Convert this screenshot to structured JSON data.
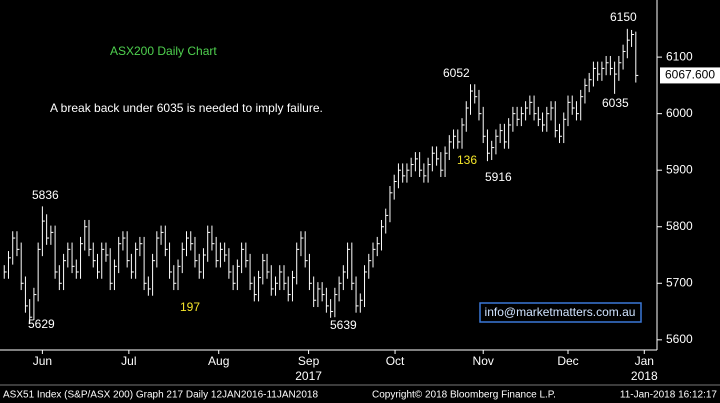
{
  "chart_data": {
    "type": "ohlc",
    "color": "#ffffff",
    "high": [
      5732,
      5757,
      5792,
      5792,
      5772,
      5712,
      5672,
      5692,
      5772,
      5836,
      5822,
      5802,
      5802,
      5732,
      5752,
      5772,
      5772,
      5742,
      5782,
      5812,
      5812,
      5772,
      5752,
      5772,
      5772,
      5762,
      5742,
      5782,
      5792,
      5792,
      5752,
      5772,
      5782,
      5782,
      5712,
      5752,
      5792,
      5802,
      5802,
      5772,
      5732,
      5742,
      5772,
      5792,
      5792,
      5782,
      5752,
      5762,
      5802,
      5802,
      5782,
      5772,
      5772,
      5762,
      5732,
      5742,
      5772,
      5772,
      5752,
      5712,
      5722,
      5752,
      5752,
      5732,
      5712,
      5732,
      5732,
      5712,
      5722,
      5772,
      5792,
      5792,
      5752,
      5712,
      5702,
      5702,
      5692,
      5672,
      5692,
      5712,
      5732,
      5772,
      5772,
      5712,
      5682,
      5732,
      5752,
      5772,
      5782,
      5812,
      5832,
      5872,
      5892,
      5912,
      5912,
      5912,
      5922,
      5932,
      5932,
      5912,
      5922,
      5942,
      5942,
      5932,
      5942,
      5962,
      5972,
      5972,
      5992,
      6022,
      6052,
      6052,
      6042,
      6012,
      5972,
      5952,
      5972,
      5982,
      5982,
      5992,
      6012,
      6012,
      6012,
      6022,
      6032,
      6032,
      6012,
      6002,
      6012,
      6022,
      6022,
      5982,
      6002,
      6032,
      6032,
      6022,
      6042,
      6062,
      6072,
      6092,
      6092,
      6092,
      6102,
      6102,
      6092,
      6102,
      6122,
      6150,
      6148,
      6145
    ],
    "low": [
      5708,
      5708,
      5733,
      5748,
      5688,
      5648,
      5629,
      5635,
      5668,
      5748,
      5768,
      5768,
      5708,
      5688,
      5688,
      5728,
      5718,
      5708,
      5708,
      5758,
      5748,
      5728,
      5708,
      5708,
      5738,
      5688,
      5688,
      5718,
      5758,
      5728,
      5708,
      5708,
      5748,
      5688,
      5678,
      5678,
      5728,
      5768,
      5748,
      5708,
      5688,
      5688,
      5718,
      5748,
      5758,
      5728,
      5708,
      5708,
      5738,
      5758,
      5728,
      5728,
      5738,
      5708,
      5688,
      5688,
      5718,
      5728,
      5688,
      5668,
      5668,
      5698,
      5708,
      5678,
      5678,
      5688,
      5688,
      5668,
      5668,
      5698,
      5748,
      5728,
      5688,
      5658,
      5658,
      5668,
      5648,
      5639,
      5640,
      5668,
      5688,
      5708,
      5688,
      5648,
      5648,
      5658,
      5708,
      5728,
      5748,
      5758,
      5788,
      5808,
      5848,
      5868,
      5878,
      5878,
      5888,
      5898,
      5888,
      5878,
      5878,
      5898,
      5908,
      5888,
      5888,
      5918,
      5938,
      5938,
      5938,
      5968,
      5998,
      6018,
      5988,
      5948,
      5916,
      5918,
      5928,
      5948,
      5938,
      5938,
      5968,
      5978,
      5978,
      5988,
      5998,
      5988,
      5978,
      5968,
      5968,
      5988,
      5958,
      5948,
      5948,
      5978,
      5998,
      5988,
      5988,
      6018,
      6038,
      6048,
      6058,
      6058,
      6068,
      6068,
      6035,
      6058,
      6078,
      6098,
      6118,
      6055
    ],
    "close": [
      5720,
      5745,
      5780,
      5760,
      5700,
      5660,
      5640,
      5680,
      5760,
      5810,
      5780,
      5790,
      5720,
      5700,
      5740,
      5760,
      5730,
      5720,
      5770,
      5800,
      5760,
      5740,
      5720,
      5760,
      5750,
      5700,
      5730,
      5770,
      5780,
      5740,
      5720,
      5760,
      5770,
      5700,
      5690,
      5740,
      5780,
      5790,
      5760,
      5720,
      5700,
      5730,
      5760,
      5780,
      5770,
      5740,
      5720,
      5750,
      5790,
      5770,
      5740,
      5760,
      5750,
      5720,
      5700,
      5730,
      5760,
      5740,
      5700,
      5680,
      5710,
      5740,
      5720,
      5690,
      5700,
      5720,
      5700,
      5680,
      5710,
      5760,
      5780,
      5740,
      5700,
      5670,
      5690,
      5680,
      5660,
      5650,
      5680,
      5700,
      5720,
      5760,
      5700,
      5660,
      5670,
      5720,
      5740,
      5760,
      5770,
      5800,
      5820,
      5860,
      5880,
      5900,
      5890,
      5900,
      5910,
      5920,
      5900,
      5890,
      5910,
      5930,
      5920,
      5900,
      5930,
      5950,
      5960,
      5950,
      5980,
      6010,
      6040,
      6030,
      6000,
      5960,
      5930,
      5940,
      5960,
      5970,
      5950,
      5980,
      6000,
      5990,
      6000,
      6010,
      6020,
      6000,
      5990,
      5980,
      6000,
      6010,
      5970,
      5960,
      5990,
      6020,
      6010,
      6000,
      6030,
      6050,
      6060,
      6080,
      6070,
      6080,
      6090,
      6080,
      6070,
      6090,
      6110,
      6130,
      6140,
      6067.6
    ],
    "xlim": [
      -1,
      154
    ],
    "xticks": [
      {
        "value": 9,
        "label": "Jun"
      },
      {
        "value": 29.4,
        "label": "Jul"
      },
      {
        "value": 50.6,
        "label": "Aug"
      },
      {
        "value": 71.8,
        "label": "Sep"
      },
      {
        "value": 92.2,
        "label": "Oct"
      },
      {
        "value": 113,
        "label": "Nov"
      },
      {
        "value": 133,
        "label": "Dec"
      },
      {
        "value": 151,
        "label": "Jan"
      }
    ],
    "x_year_labels": [
      {
        "value": 71.8,
        "label": "2017"
      },
      {
        "value": 151,
        "label": "2018"
      }
    ],
    "ylim": [
      5582,
      6201
    ],
    "yticks": [
      5600,
      5700,
      5800,
      5900,
      6000,
      6100
    ],
    "last_price_label": "6067.600",
    "annotations": [
      "ASX200 Daily Chart",
      "A break back under 6035 is needed to imply failure.",
      "5836",
      "5629",
      "197",
      "5639",
      "136",
      "6052",
      "5916",
      "6150",
      "6035"
    ],
    "contact": "info@marketmatters.com.au",
    "footer": [
      "ASX51 Index (S&P/ASX 200) Graph 217  Daily 12JAN2016-11JAN2018",
      "Copyright© 2018 Bloomberg Finance L.P.",
      "11-Jan-2018 16:12:17"
    ]
  }
}
